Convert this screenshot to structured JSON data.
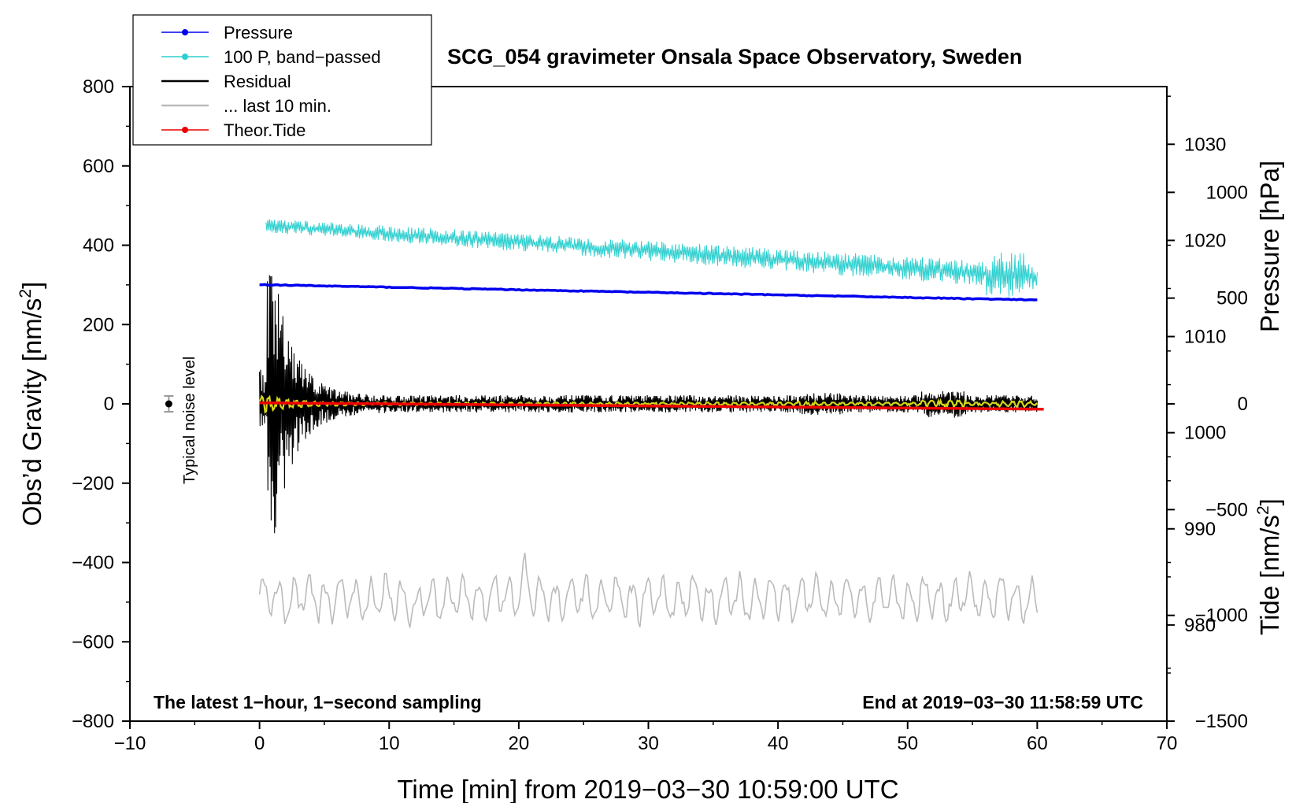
{
  "chart_data": {
    "type": "line",
    "title": "SCG_054 gravimeter Onsala Space Observatory, Sweden",
    "xlabel": "Time [min] from 2019−03−30 10:59:00 UTC",
    "ylabel_left_text": "Obs’d Gravity [nm/s",
    "ylabel_left_sup": "2",
    "ylabel_left_tail": "]",
    "ylabel_right_pressure": "Pressure [hPa]",
    "ylabel_right_tide_text": "Tide [nm/s",
    "ylabel_right_tide_sup": "2",
    "ylabel_right_tide_tail": "]",
    "xlim": [
      -10,
      70
    ],
    "ylim_left": [
      -800,
      800
    ],
    "pressure_range": [
      970,
      1036
    ],
    "tide_range": [
      -1500,
      1500
    ],
    "x_ticks": [
      -10,
      0,
      10,
      20,
      30,
      40,
      50,
      60,
      70
    ],
    "x_tick_labels": [
      "−10",
      "0",
      "10",
      "20",
      "30",
      "40",
      "50",
      "60",
      "70"
    ],
    "y_left_ticks": [
      800,
      600,
      400,
      200,
      0,
      -200,
      -400,
      -600,
      -800
    ],
    "y_left_tick_labels": [
      "800",
      "600",
      "400",
      "200",
      "0",
      "−200",
      "−400",
      "−600",
      "−800"
    ],
    "pressure_ticks": [
      1030,
      1020,
      1010,
      1000,
      990,
      980
    ],
    "pressure_tick_labels": [
      "1030",
      "1020",
      "1010",
      "1000",
      "990",
      "980"
    ],
    "tide_ticks": [
      1000,
      500,
      0,
      -500,
      -1000,
      -1500
    ],
    "tide_tick_labels": [
      "1000",
      "500",
      "0",
      "−500",
      "−1000",
      "−1500"
    ],
    "legend": [
      {
        "label": "Pressure",
        "color": "#0000ee",
        "marker": true
      },
      {
        "label": "100 P, band−passed",
        "color": "#2ecfcf",
        "marker": true
      },
      {
        "label": "Residual",
        "color": "#000000",
        "marker": false
      },
      {
        "label": "... last 10 min.",
        "color": "#bbbbbb",
        "marker": false
      },
      {
        "label": "Theor.Tide",
        "color": "#ee0000",
        "marker": true
      }
    ],
    "legend_position": "top-left",
    "noise_label": "Typical noise level",
    "noise_level": {
      "x": -7,
      "center": 0,
      "halfwidth": 20
    },
    "left_annotation": "The latest 1−hour, 1−second sampling",
    "right_annotation": "End at 2019−03−30 11:58:59 UTC",
    "series": [
      {
        "name": "Pressure",
        "axis": "pressure",
        "color": "#0000ee",
        "x_range": [
          0,
          60
        ],
        "start": 1015.4,
        "end": 1013.8
      },
      {
        "name": "100 P, band-passed",
        "axis": "left",
        "color": "#2ecfcf",
        "x_range": [
          0.5,
          60
        ],
        "start": 450,
        "end": 320,
        "noise_amplitude": 30
      },
      {
        "name": "Residual",
        "axis": "left",
        "color": "#000000",
        "x_range": [
          0,
          60
        ],
        "center": 0,
        "peak_amplitude": 310,
        "typical_amplitude": 40
      },
      {
        "name": "Residual (filtered)",
        "axis": "left",
        "color": "#d6d61a",
        "x_range": [
          0,
          60
        ],
        "center": 0,
        "typical_amplitude": 10
      },
      {
        "name": "... last 10 min.",
        "axis": "left",
        "color": "#bbbbbb",
        "x_range": [
          0,
          60
        ],
        "center": -490,
        "typical_amplitude": 45
      },
      {
        "name": "Theor.Tide",
        "axis": "tide",
        "color": "#ee0000",
        "x_range": [
          0,
          60.5
        ],
        "start": 5,
        "end": -25
      }
    ],
    "grid": false
  }
}
